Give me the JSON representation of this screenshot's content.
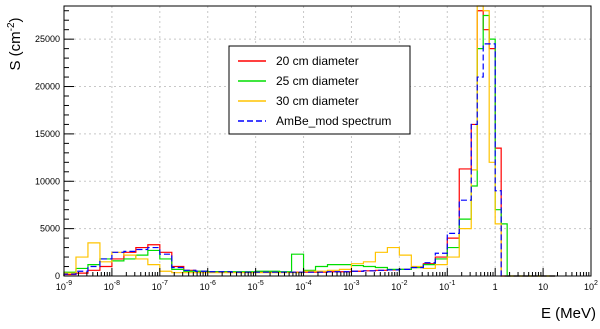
{
  "chart_data": {
    "type": "line",
    "subtype": "step-histogram",
    "x_scale": "log",
    "xlim": [
      1e-09,
      100
    ],
    "ylim": [
      0,
      28500
    ],
    "grid": true,
    "legend_placement": "upper-center",
    "xlabel": "E (MeV)",
    "ylabel_base": "S (cm",
    "ylabel_exp": "-2",
    "ylabel_close": ")",
    "x_ticks": [
      {
        "base": "10",
        "exp": "-9",
        "v": 1e-09
      },
      {
        "base": "10",
        "exp": "-8",
        "v": 1e-08
      },
      {
        "base": "10",
        "exp": "-7",
        "v": 1e-07
      },
      {
        "base": "10",
        "exp": "-6",
        "v": 1e-06
      },
      {
        "base": "10",
        "exp": "-5",
        "v": 1e-05
      },
      {
        "base": "10",
        "exp": "-4",
        "v": 0.0001
      },
      {
        "base": "10",
        "exp": "-3",
        "v": 0.001
      },
      {
        "base": "10",
        "exp": "-2",
        "v": 0.01
      },
      {
        "base": "10",
        "exp": "-1",
        "v": 0.1
      },
      {
        "base": "1",
        "exp": "",
        "v": 1
      },
      {
        "base": "10",
        "exp": "",
        "v": 10
      },
      {
        "base": "10",
        "exp": "2",
        "v": 100
      }
    ],
    "y_ticks": [
      0,
      5000,
      10000,
      15000,
      20000,
      25000
    ],
    "y_tick_labels": [
      "0",
      "5000",
      "10000",
      "15000",
      "20000",
      "25000"
    ],
    "bin_edges_log10": [
      -9,
      -8.75,
      -8.5,
      -8.25,
      -8,
      -7.75,
      -7.5,
      -7.25,
      -7,
      -6.75,
      -6.5,
      -6.25,
      -6,
      -5.5,
      -5,
      -4.5,
      -4.25,
      -4,
      -3.75,
      -3.5,
      -3.25,
      -3,
      -2.75,
      -2.5,
      -2.25,
      -2,
      -1.75,
      -1.5,
      -1.25,
      -1,
      -0.75,
      -0.5,
      -0.375,
      -0.25,
      -0.125,
      0,
      0.125,
      0.25,
      0.375,
      0.5,
      0.625,
      0.75,
      0.875,
      1,
      1.125,
      1.25
    ],
    "series": [
      {
        "name": "20 cm diameter",
        "color": "#ff0000",
        "dashed": false,
        "values": [
          150,
          300,
          600,
          1000,
          1800,
          2500,
          3000,
          3300,
          2500,
          1000,
          600,
          500,
          450,
          400,
          400,
          400,
          400,
          400,
          400,
          450,
          450,
          500,
          550,
          600,
          650,
          700,
          900,
          1300,
          2000,
          4000,
          11300,
          16000,
          28000,
          26000,
          24000,
          13500,
          0,
          0,
          0,
          0,
          0,
          0,
          0,
          0,
          0
        ]
      },
      {
        "name": "25 cm diameter",
        "color": "#00dd00",
        "dashed": false,
        "values": [
          400,
          800,
          1200,
          1800,
          1600,
          1800,
          2200,
          2700,
          1800,
          700,
          500,
          500,
          450,
          450,
          500,
          450,
          2300,
          600,
          1000,
          1200,
          1200,
          1100,
          1000,
          900,
          700,
          700,
          900,
          1200,
          1800,
          3000,
          6000,
          9500,
          24000,
          27500,
          25000,
          7000,
          5500,
          0,
          0,
          0,
          0,
          0,
          0,
          0,
          0
        ]
      },
      {
        "name": "30 cm diameter",
        "color": "#ffc400",
        "dashed": false,
        "values": [
          300,
          2000,
          3500,
          1500,
          2500,
          2200,
          1800,
          1200,
          500,
          350,
          350,
          350,
          350,
          350,
          350,
          350,
          350,
          500,
          500,
          600,
          700,
          1300,
          1500,
          2500,
          3000,
          2200,
          1000,
          800,
          1200,
          2000,
          5000,
          11200,
          28500,
          28000,
          12000,
          5500,
          0,
          0,
          0,
          0,
          0,
          0,
          0,
          0,
          0
        ]
      },
      {
        "name": "AmBe_mod spectrum",
        "color": "#0000ff",
        "dashed": true,
        "values": [
          200,
          500,
          1000,
          1800,
          2500,
          2600,
          2800,
          3000,
          2300,
          900,
          600,
          500,
          450,
          400,
          400,
          400,
          400,
          400,
          400,
          450,
          450,
          500,
          550,
          600,
          650,
          700,
          900,
          1400,
          2400,
          4500,
          8000,
          16000,
          21000,
          24500,
          24500,
          9000,
          0,
          0,
          0,
          0,
          0,
          0,
          0,
          0,
          0
        ]
      }
    ]
  }
}
